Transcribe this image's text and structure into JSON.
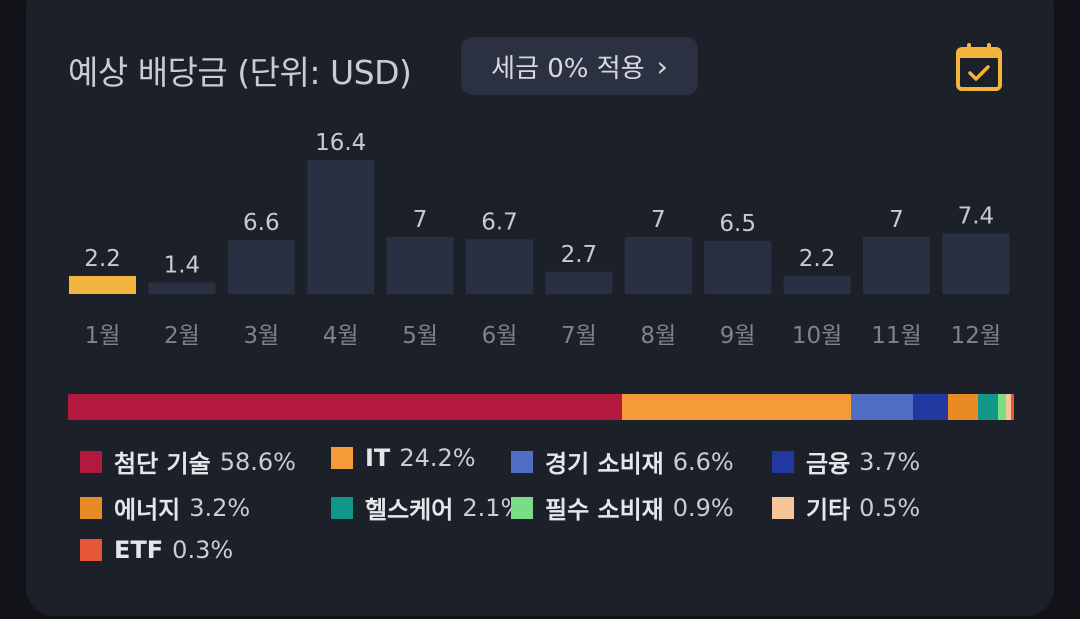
{
  "header": {
    "title": "예상 배당금 (단위: USD)",
    "tax_button_label": "세금 0% 적용",
    "tax_button_chevron": "›",
    "calendar_icon": "calendar-check-icon"
  },
  "colors": {
    "bar": "#283041",
    "bar_highlight": "#f2b43c",
    "value_label": "#c7cad2",
    "axis_label": "#7d828e"
  },
  "chart_data": {
    "type": "bar",
    "categories": [
      "1월",
      "2월",
      "3월",
      "4월",
      "5월",
      "6월",
      "7월",
      "8월",
      "9월",
      "10월",
      "11월",
      "12월"
    ],
    "values": [
      2.2,
      1.4,
      6.6,
      16.4,
      7,
      6.7,
      2.7,
      7,
      6.5,
      2.2,
      7,
      7.4
    ],
    "highlighted_category": "1월",
    "title": "",
    "xlabel": "",
    "ylabel": "",
    "grid": false
  },
  "allocation": {
    "segments": [
      {
        "name": "첨단 기술",
        "percent": 58.6,
        "percent_label": "58.6%",
        "color": "#b3183f"
      },
      {
        "name": "IT",
        "percent": 24.2,
        "percent_label": "24.2%",
        "color": "#f59a39"
      },
      {
        "name": "경기 소비재",
        "percent": 6.6,
        "percent_label": "6.6%",
        "color": "#4f6fc4"
      },
      {
        "name": "금융",
        "percent": 3.7,
        "percent_label": "3.7%",
        "color": "#2238a0"
      },
      {
        "name": "에너지",
        "percent": 3.2,
        "percent_label": "3.2%",
        "color": "#e88b25"
      },
      {
        "name": "헬스케어",
        "percent": 2.1,
        "percent_label": "2.1%",
        "color": "#11978a"
      },
      {
        "name": "필수 소비재",
        "percent": 0.9,
        "percent_label": "0.9%",
        "color": "#7bdc86"
      },
      {
        "name": "기타",
        "percent": 0.5,
        "percent_label": "0.5%",
        "color": "#f6c59a"
      },
      {
        "name": "ETF",
        "percent": 0.3,
        "percent_label": "0.3%",
        "color": "#e6573a"
      }
    ]
  }
}
